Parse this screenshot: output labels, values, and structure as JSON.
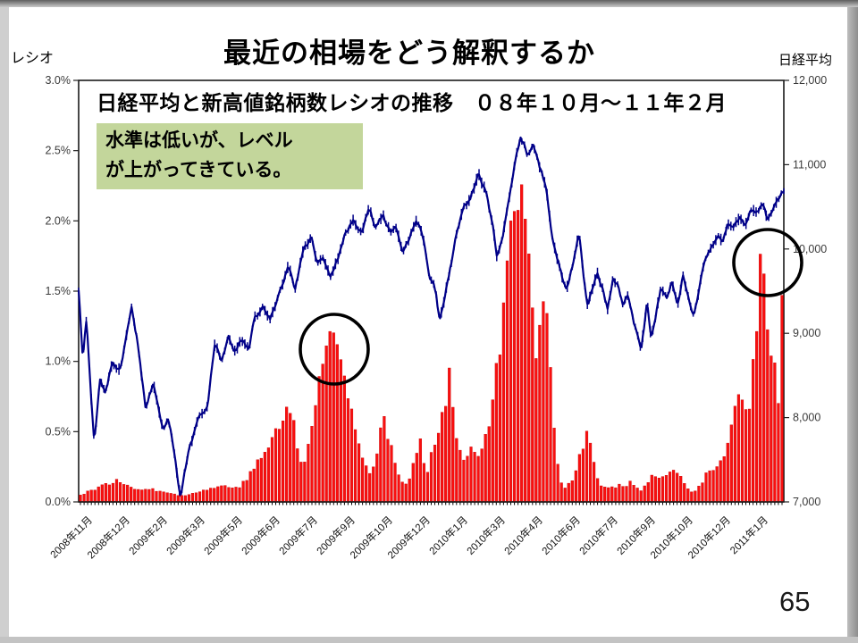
{
  "slide": {
    "title": "最近の相場をどう解釈するか",
    "page_number": "65",
    "left_axis_title": "レシオ",
    "right_axis_title": "日経平均",
    "note": {
      "line1": "水準は低いが、レベル",
      "line2": "が上がってきている。",
      "bg_color": "#c3d69b"
    }
  },
  "chart_data": {
    "type": "combo bar+line",
    "title": "日経平均と新高値銘柄数レシオの推移　０８年１０月～１１年２月",
    "legend_position": "none",
    "grid": "off",
    "left_axis": {
      "label": "レシオ",
      "unit": "%",
      "min": 0.0,
      "max": 3.0,
      "tick_labels": [
        "0.0%",
        "0.5%",
        "1.0%",
        "1.5%",
        "2.0%",
        "2.5%",
        "3.0%"
      ],
      "tick_values": [
        0.0,
        0.5,
        1.0,
        1.5,
        2.0,
        2.5,
        3.0
      ]
    },
    "right_axis": {
      "label": "日経平均",
      "unit": "yen",
      "min": 7000,
      "max": 12000,
      "tick_labels": [
        "7,000",
        "8,000",
        "9,000",
        "10,000",
        "11,000",
        "12,000"
      ],
      "tick_values": [
        7000,
        8000,
        9000,
        10000,
        11000,
        12000
      ]
    },
    "x_axis": {
      "range_start": "2008年10月末",
      "range_end": "2011年2月",
      "tick_labels": [
        "2008年11月",
        "2008年12月",
        "2009年2月",
        "2009年3月",
        "2009年5月",
        "2009年6月",
        "2009年7月",
        "2009年9月",
        "2009年10月",
        "2009年12月",
        "2010年1月",
        "2010年3月",
        "2010年4月",
        "2010年6月",
        "2010年7月",
        "2010年9月",
        "2010年10月",
        "2010年12月",
        "2011年1月"
      ]
    },
    "series": [
      {
        "name": "新高値銘柄数レシオ",
        "type": "bar",
        "axis": "left",
        "color": "#f90f0f",
        "keypoints": [
          [
            0.003,
            0.05
          ],
          [
            0.015,
            0.08
          ],
          [
            0.028,
            0.1
          ],
          [
            0.041,
            0.13
          ],
          [
            0.053,
            0.15
          ],
          [
            0.066,
            0.12
          ],
          [
            0.079,
            0.1
          ],
          [
            0.098,
            0.09
          ],
          [
            0.117,
            0.08
          ],
          [
            0.136,
            0.06
          ],
          [
            0.148,
            0.04
          ],
          [
            0.161,
            0.06
          ],
          [
            0.174,
            0.08
          ],
          [
            0.193,
            0.1
          ],
          [
            0.208,
            0.12
          ],
          [
            0.221,
            0.1
          ],
          [
            0.231,
            0.12
          ],
          [
            0.247,
            0.22
          ],
          [
            0.256,
            0.3
          ],
          [
            0.266,
            0.38
          ],
          [
            0.275,
            0.45
          ],
          [
            0.284,
            0.52
          ],
          [
            0.292,
            0.62
          ],
          [
            0.297,
            0.7
          ],
          [
            0.303,
            0.62
          ],
          [
            0.309,
            0.42
          ],
          [
            0.314,
            0.3
          ],
          [
            0.319,
            0.26
          ],
          [
            0.325,
            0.4
          ],
          [
            0.332,
            0.55
          ],
          [
            0.338,
            0.75
          ],
          [
            0.345,
            0.95
          ],
          [
            0.351,
            1.1
          ],
          [
            0.357,
            1.22
          ],
          [
            0.363,
            1.25
          ],
          [
            0.369,
            1.05
          ],
          [
            0.375,
            0.92
          ],
          [
            0.383,
            0.74
          ],
          [
            0.39,
            0.62
          ],
          [
            0.398,
            0.44
          ],
          [
            0.406,
            0.28
          ],
          [
            0.413,
            0.21
          ],
          [
            0.421,
            0.28
          ],
          [
            0.426,
            0.48
          ],
          [
            0.431,
            0.64
          ],
          [
            0.437,
            0.52
          ],
          [
            0.444,
            0.4
          ],
          [
            0.45,
            0.22
          ],
          [
            0.459,
            0.14
          ],
          [
            0.466,
            0.12
          ],
          [
            0.471,
            0.2
          ],
          [
            0.478,
            0.32
          ],
          [
            0.484,
            0.42
          ],
          [
            0.489,
            0.3
          ],
          [
            0.494,
            0.22
          ],
          [
            0.501,
            0.35
          ],
          [
            0.507,
            0.48
          ],
          [
            0.513,
            0.6
          ],
          [
            0.52,
            0.75
          ],
          [
            0.526,
            0.9
          ],
          [
            0.532,
            0.62
          ],
          [
            0.539,
            0.4
          ],
          [
            0.544,
            0.29
          ],
          [
            0.55,
            0.34
          ],
          [
            0.556,
            0.42
          ],
          [
            0.563,
            0.38
          ],
          [
            0.569,
            0.32
          ],
          [
            0.574,
            0.38
          ],
          [
            0.581,
            0.55
          ],
          [
            0.587,
            0.72
          ],
          [
            0.593,
            0.92
          ],
          [
            0.598,
            1.06
          ],
          [
            0.603,
            1.35
          ],
          [
            0.608,
            1.7
          ],
          [
            0.613,
            2.0
          ],
          [
            0.618,
            2.2
          ],
          [
            0.624,
            2.35
          ],
          [
            0.627,
            2.44
          ],
          [
            0.631,
            2.3
          ],
          [
            0.636,
            2.0
          ],
          [
            0.641,
            1.55
          ],
          [
            0.646,
            1.1
          ],
          [
            0.65,
            0.9
          ],
          [
            0.654,
            1.2
          ],
          [
            0.66,
            1.65
          ],
          [
            0.664,
            1.45
          ],
          [
            0.668,
            1.0
          ],
          [
            0.672,
            0.68
          ],
          [
            0.676,
            0.45
          ],
          [
            0.679,
            0.28
          ],
          [
            0.684,
            0.14
          ],
          [
            0.692,
            0.1
          ],
          [
            0.7,
            0.16
          ],
          [
            0.706,
            0.24
          ],
          [
            0.712,
            0.35
          ],
          [
            0.717,
            0.44
          ],
          [
            0.721,
            0.48
          ],
          [
            0.725,
            0.4
          ],
          [
            0.73,
            0.28
          ],
          [
            0.735,
            0.18
          ],
          [
            0.741,
            0.12
          ],
          [
            0.75,
            0.09
          ],
          [
            0.76,
            0.11
          ],
          [
            0.769,
            0.13
          ],
          [
            0.776,
            0.11
          ],
          [
            0.783,
            0.14
          ],
          [
            0.791,
            0.1
          ],
          [
            0.798,
            0.08
          ],
          [
            0.806,
            0.13
          ],
          [
            0.814,
            0.18
          ],
          [
            0.821,
            0.15
          ],
          [
            0.829,
            0.18
          ],
          [
            0.836,
            0.21
          ],
          [
            0.843,
            0.23
          ],
          [
            0.849,
            0.2
          ],
          [
            0.855,
            0.16
          ],
          [
            0.862,
            0.1
          ],
          [
            0.869,
            0.07
          ],
          [
            0.877,
            0.09
          ],
          [
            0.885,
            0.15
          ],
          [
            0.892,
            0.22
          ],
          [
            0.899,
            0.25
          ],
          [
            0.905,
            0.24
          ],
          [
            0.911,
            0.28
          ],
          [
            0.918,
            0.35
          ],
          [
            0.924,
            0.52
          ],
          [
            0.93,
            0.62
          ],
          [
            0.937,
            0.8
          ],
          [
            0.942,
            0.72
          ],
          [
            0.947,
            0.62
          ],
          [
            0.952,
            0.72
          ],
          [
            0.957,
            0.95
          ],
          [
            0.962,
            1.3
          ],
          [
            0.966,
            1.58
          ],
          [
            0.971,
            1.81
          ],
          [
            0.976,
            1.4
          ],
          [
            0.98,
            1.15
          ],
          [
            0.985,
            1.05
          ],
          [
            0.989,
            0.95
          ],
          [
            0.992,
            0.7
          ],
          [
            0.996,
            1.2
          ],
          [
            1.0,
            1.86
          ]
        ]
      },
      {
        "name": "日経平均",
        "type": "line",
        "axis": "right",
        "color": "#000088",
        "keypoints": [
          [
            0.0,
            9530
          ],
          [
            0.006,
            8700
          ],
          [
            0.011,
            9150
          ],
          [
            0.022,
            7690
          ],
          [
            0.03,
            8450
          ],
          [
            0.038,
            8250
          ],
          [
            0.048,
            8650
          ],
          [
            0.058,
            8550
          ],
          [
            0.075,
            9250
          ],
          [
            0.085,
            8800
          ],
          [
            0.095,
            8080
          ],
          [
            0.106,
            8400
          ],
          [
            0.119,
            7870
          ],
          [
            0.127,
            7950
          ],
          [
            0.136,
            7550
          ],
          [
            0.144,
            7060
          ],
          [
            0.157,
            7650
          ],
          [
            0.17,
            7950
          ],
          [
            0.183,
            8150
          ],
          [
            0.193,
            8840
          ],
          [
            0.203,
            8600
          ],
          [
            0.212,
            8950
          ],
          [
            0.221,
            8750
          ],
          [
            0.231,
            8950
          ],
          [
            0.241,
            8850
          ],
          [
            0.25,
            9200
          ],
          [
            0.262,
            9300
          ],
          [
            0.271,
            9150
          ],
          [
            0.284,
            9500
          ],
          [
            0.297,
            9800
          ],
          [
            0.307,
            9550
          ],
          [
            0.319,
            10000
          ],
          [
            0.33,
            10100
          ],
          [
            0.338,
            9850
          ],
          [
            0.347,
            9950
          ],
          [
            0.357,
            9700
          ],
          [
            0.368,
            9900
          ],
          [
            0.376,
            10150
          ],
          [
            0.389,
            10350
          ],
          [
            0.402,
            10200
          ],
          [
            0.411,
            10450
          ],
          [
            0.421,
            10250
          ],
          [
            0.431,
            10400
          ],
          [
            0.441,
            10200
          ],
          [
            0.451,
            10250
          ],
          [
            0.459,
            9950
          ],
          [
            0.469,
            10100
          ],
          [
            0.479,
            10350
          ],
          [
            0.487,
            10200
          ],
          [
            0.497,
            9750
          ],
          [
            0.507,
            9500
          ],
          [
            0.512,
            9150
          ],
          [
            0.522,
            9550
          ],
          [
            0.535,
            10100
          ],
          [
            0.545,
            10450
          ],
          [
            0.554,
            10550
          ],
          [
            0.567,
            10900
          ],
          [
            0.579,
            10650
          ],
          [
            0.588,
            10250
          ],
          [
            0.593,
            9950
          ],
          [
            0.601,
            10100
          ],
          [
            0.611,
            10650
          ],
          [
            0.62,
            11100
          ],
          [
            0.627,
            11340
          ],
          [
            0.636,
            11150
          ],
          [
            0.645,
            11250
          ],
          [
            0.654,
            10950
          ],
          [
            0.662,
            10750
          ],
          [
            0.671,
            10200
          ],
          [
            0.677,
            9950
          ],
          [
            0.684,
            9750
          ],
          [
            0.692,
            9500
          ],
          [
            0.7,
            9750
          ],
          [
            0.71,
            10150
          ],
          [
            0.717,
            9550
          ],
          [
            0.722,
            9300
          ],
          [
            0.729,
            9550
          ],
          [
            0.735,
            9750
          ],
          [
            0.743,
            9550
          ],
          [
            0.75,
            9300
          ],
          [
            0.758,
            9650
          ],
          [
            0.766,
            9550
          ],
          [
            0.772,
            9300
          ],
          [
            0.779,
            9450
          ],
          [
            0.786,
            9150
          ],
          [
            0.793,
            8950
          ],
          [
            0.798,
            8820
          ],
          [
            0.806,
            9350
          ],
          [
            0.812,
            8950
          ],
          [
            0.826,
            9550
          ],
          [
            0.834,
            9400
          ],
          [
            0.841,
            9600
          ],
          [
            0.849,
            9350
          ],
          [
            0.857,
            9700
          ],
          [
            0.864,
            9450
          ],
          [
            0.872,
            9250
          ],
          [
            0.88,
            9550
          ],
          [
            0.89,
            9900
          ],
          [
            0.899,
            10050
          ],
          [
            0.906,
            10150
          ],
          [
            0.913,
            10100
          ],
          [
            0.92,
            10300
          ],
          [
            0.928,
            10250
          ],
          [
            0.937,
            10400
          ],
          [
            0.944,
            10300
          ],
          [
            0.953,
            10480
          ],
          [
            0.962,
            10400
          ],
          [
            0.97,
            10550
          ],
          [
            0.976,
            10360
          ],
          [
            0.983,
            10450
          ],
          [
            0.991,
            10620
          ],
          [
            1.0,
            10690
          ]
        ]
      }
    ],
    "annotations": {
      "circles": [
        {
          "x_frac": 0.3625,
          "y_frac": 0.6377,
          "rx": 38,
          "ry": 39
        },
        {
          "x_frac": 0.9772,
          "y_frac": 0.4322,
          "rx": 38,
          "ry": 37
        }
      ]
    },
    "colors": {
      "bar": "#f90f0f",
      "line": "#000088",
      "axis": "#1a1a1a",
      "tick_text": "#3a3a3a"
    }
  }
}
